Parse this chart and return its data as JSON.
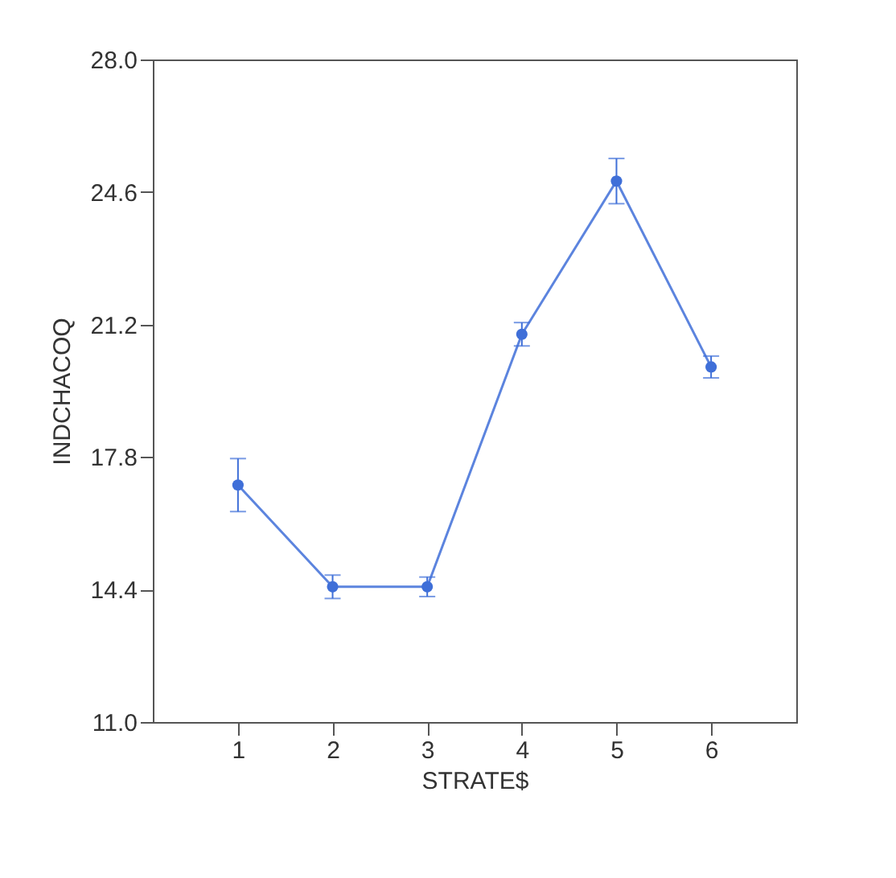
{
  "chart_data": {
    "type": "line",
    "xlabel": "STRATE$",
    "ylabel": "INDCHACOQ",
    "x": [
      1,
      2,
      3,
      4,
      5,
      6
    ],
    "series": [
      {
        "color": "#3f6fd8",
        "values": [
          17.08,
          14.47,
          14.47,
          20.95,
          24.88,
          20.11
        ],
        "errors": [
          0.68,
          0.3,
          0.25,
          0.3,
          0.58,
          0.28
        ]
      }
    ],
    "xlim": [
      0.1,
      6.9
    ],
    "xticks": [
      1,
      2,
      3,
      4,
      5,
      6
    ],
    "ylim": [
      11.0,
      28.0
    ],
    "yticks": [
      {
        "value": 11.0,
        "label": "11.0"
      },
      {
        "value": 14.4,
        "label": "14.4"
      },
      {
        "value": 17.8,
        "label": "17.8"
      },
      {
        "value": 21.2,
        "label": "21.2"
      },
      {
        "value": 24.6,
        "label": "24.6"
      },
      {
        "value": 28.0,
        "label": "28.0"
      }
    ],
    "marker": "circle",
    "grid": false,
    "line_style": "solid"
  }
}
